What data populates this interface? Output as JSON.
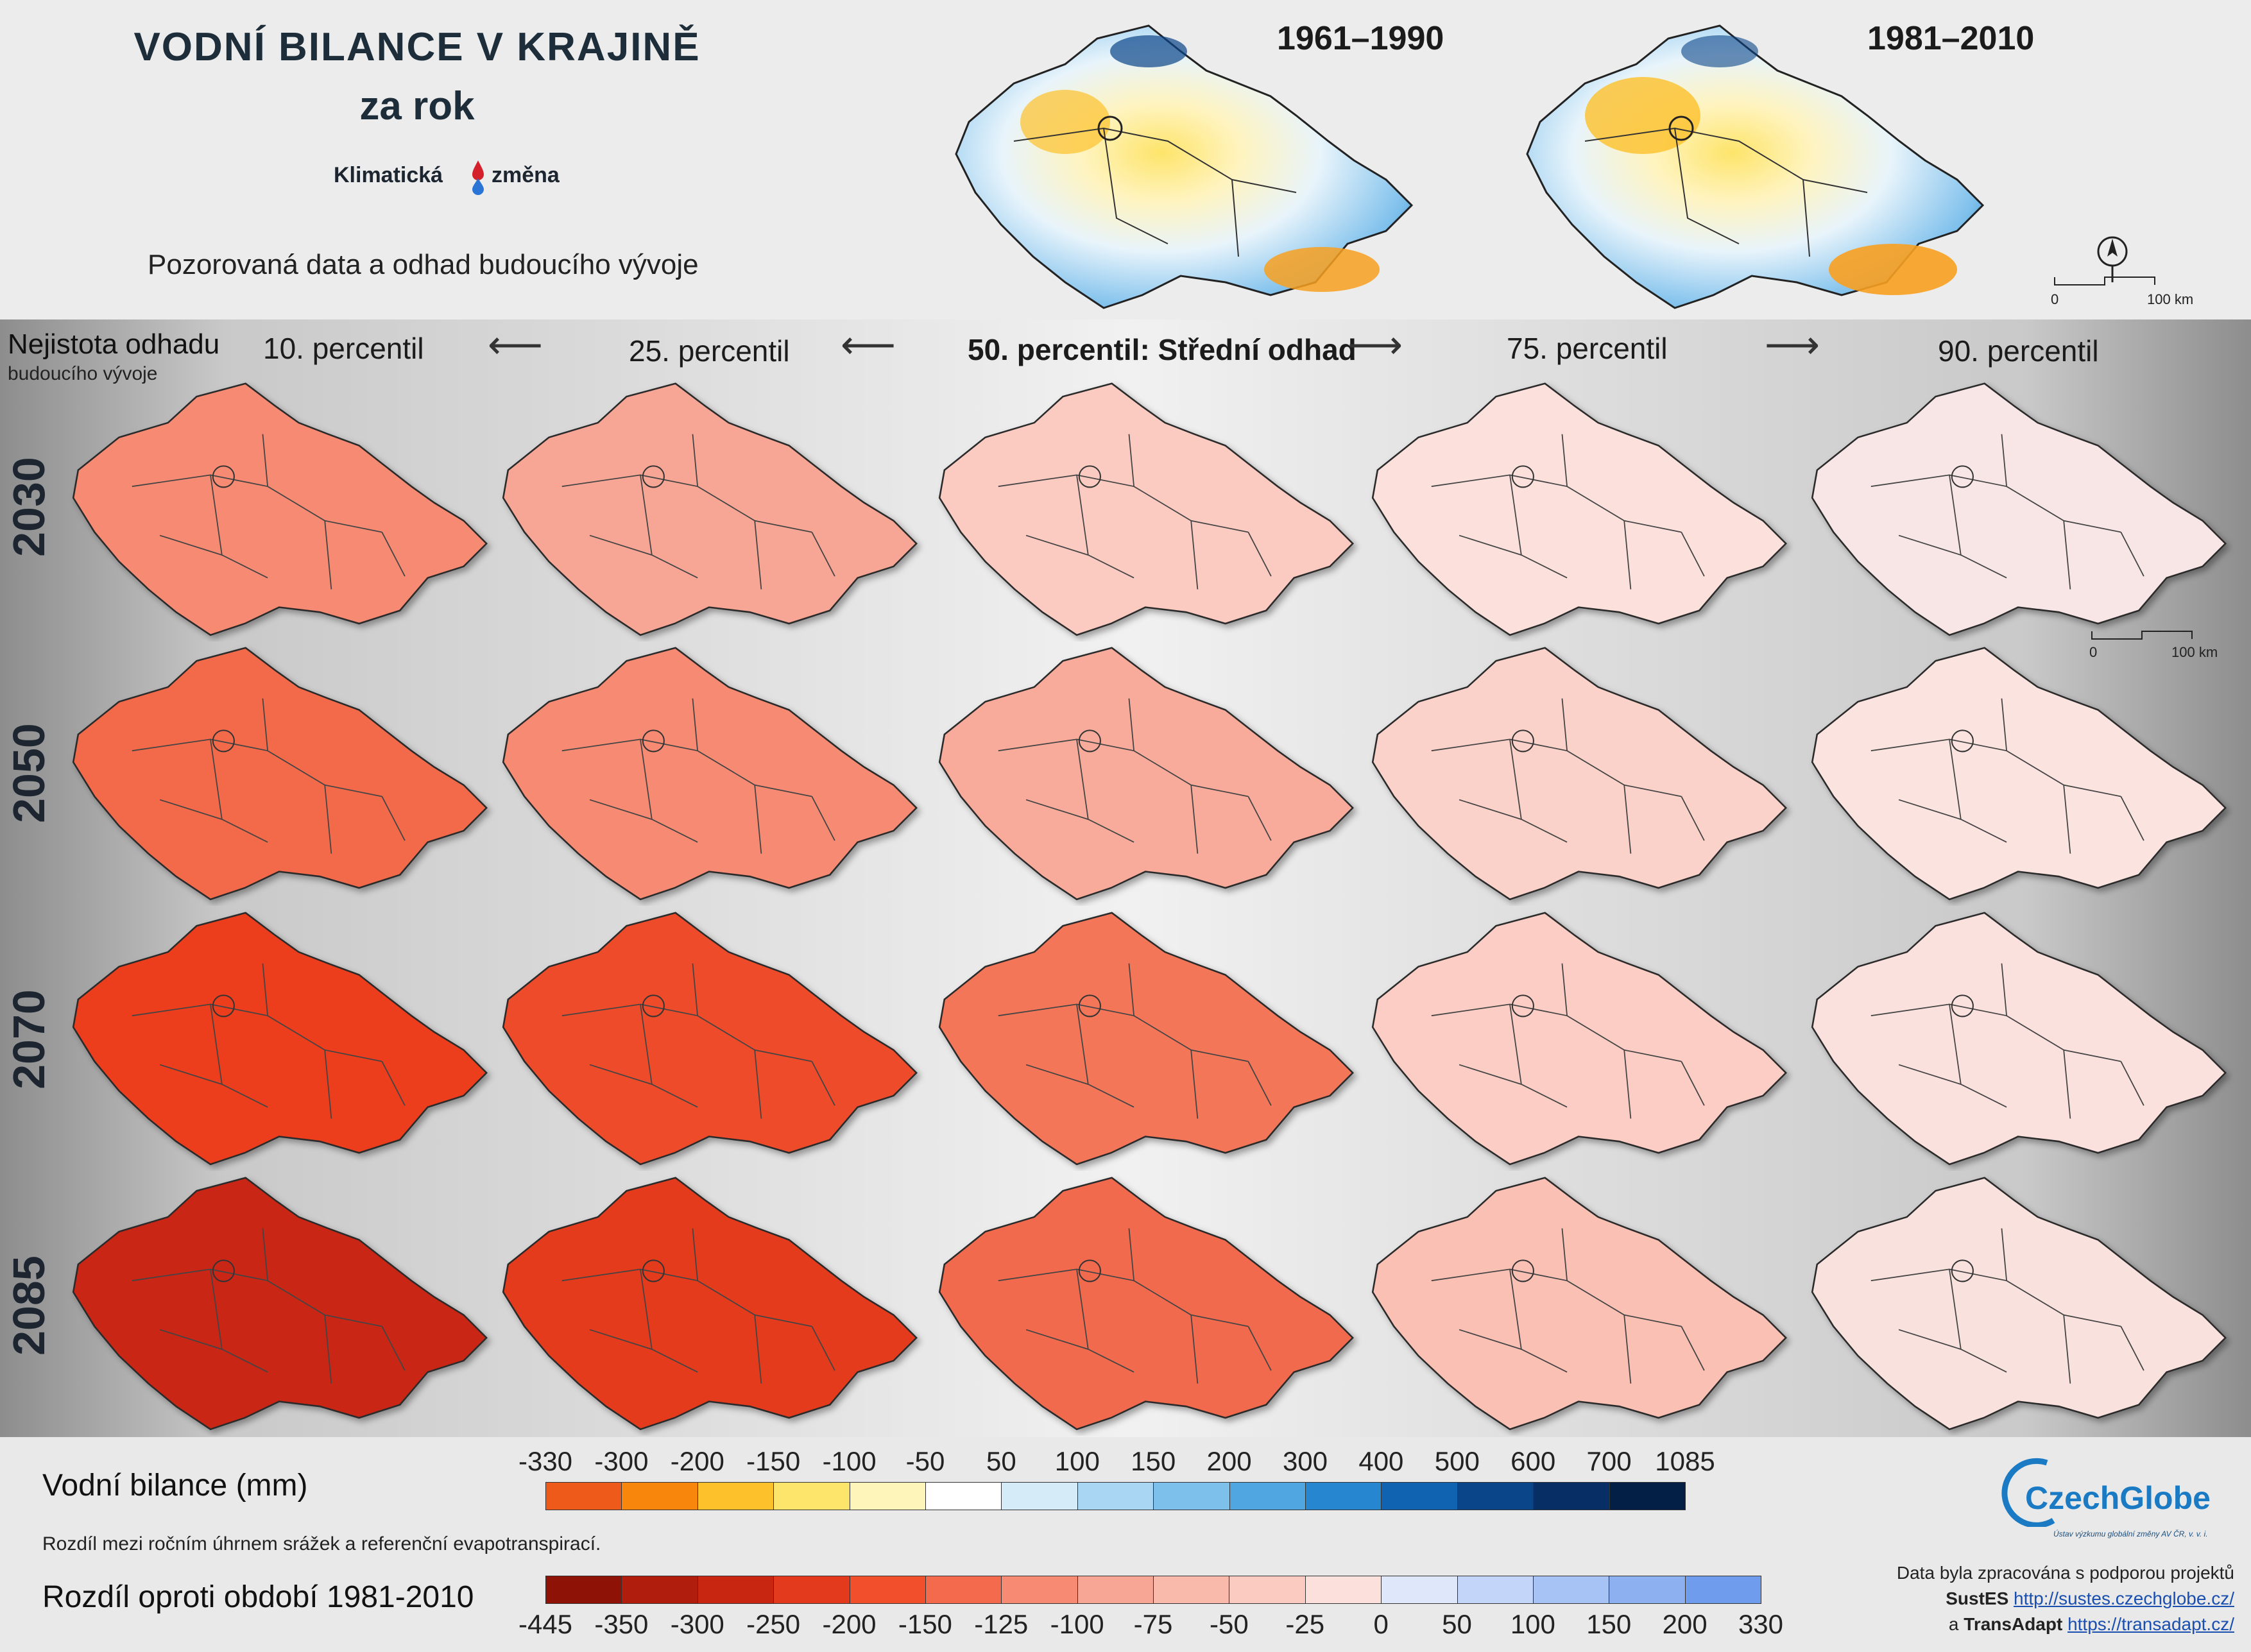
{
  "header": {
    "title": "VODNÍ BILANCE V KRAJINĚ",
    "subtitle": "za rok",
    "brand_left": "Klimatická",
    "brand_right": "změna",
    "description": "Pozorovaná data a odhad budoucího vývoje",
    "obs_maps": [
      {
        "label": "1961–1990"
      },
      {
        "label": "1981–2010"
      }
    ],
    "scale_zero": "0",
    "scale_km": "100 km"
  },
  "uncertainty": {
    "line1": "Nejistota odhadu",
    "line2": "budoucího vývoje"
  },
  "columns": [
    {
      "label": "10. percentil"
    },
    {
      "label": "25. percentil"
    },
    {
      "label": "50. percentil: Střední odhad"
    },
    {
      "label": "75. percentil"
    },
    {
      "label": "90. percentil"
    }
  ],
  "rows": [
    {
      "year": "2030",
      "colors": [
        "#f68a72",
        "#f7a594",
        "#fbcac1",
        "#fbe0dc",
        "#f8e6e6"
      ]
    },
    {
      "year": "2050",
      "colors": [
        "#f36b4c",
        "#f68a72",
        "#f8ab9b",
        "#fbd2ca",
        "#fbe3df"
      ]
    },
    {
      "year": "2070",
      "colors": [
        "#ec3c1c",
        "#ee4b2a",
        "#f47659",
        "#fbcdc4",
        "#fbe1dd"
      ]
    },
    {
      "year": "2085",
      "colors": [
        "#c92612",
        "#e33a1e",
        "#f26b4d",
        "#fac0b4",
        "#f9e1dd"
      ]
    }
  ],
  "grid_scale": {
    "zero": "0",
    "km": "100 km"
  },
  "legend": {
    "top_title": "Vodní bilance (mm)",
    "top_desc": "Rozdíl mezi ročním úhrnem srážek a referenční evapotranspirací.",
    "top_ticks": [
      "-330",
      "-300",
      "-200",
      "-150",
      "-100",
      "-50",
      "50",
      "100",
      "150",
      "200",
      "300",
      "400",
      "500",
      "600",
      "700",
      "1085"
    ],
    "top_colors": [
      "#ee5a1a",
      "#f8860d",
      "#fcc12b",
      "#fde46a",
      "#fef5ba",
      "#ffffff",
      "#d5ecf8",
      "#a8d6f3",
      "#7ec0ec",
      "#4fa6e0",
      "#2687d0",
      "#0f63b0",
      "#0a4589",
      "#072f66",
      "#041f45"
    ],
    "bottom_title": "Rozdíl oproti období 1981-2010",
    "bottom_ticks": [
      "-445",
      "-350",
      "-300",
      "-250",
      "-200",
      "-150",
      "-125",
      "-100",
      "-75",
      "-50",
      "-25",
      "0",
      "50",
      "100",
      "150",
      "200",
      "330"
    ],
    "bottom_colors": [
      "#8f1206",
      "#b01d0c",
      "#c92612",
      "#e33a1e",
      "#f24f2c",
      "#f36b4c",
      "#f68a72",
      "#f7a594",
      "#f9baac",
      "#fbcac1",
      "#fbe0dc",
      "#dfe8fb",
      "#c3d5f8",
      "#a7c2f4",
      "#8db0f0",
      "#6f9cec"
    ]
  },
  "credits": {
    "logo_text": "CzechGlobe",
    "logo_sub": "Ústav výzkumu globální změny AV ČR, v. v. i.",
    "line1": "Data byla zpracována s podporou projektů",
    "project1": "SustES",
    "link1": "http://sustes.czechglobe.cz/",
    "and": "a",
    "project2": "TransAdapt",
    "link2": "https://transadapt.cz/"
  }
}
